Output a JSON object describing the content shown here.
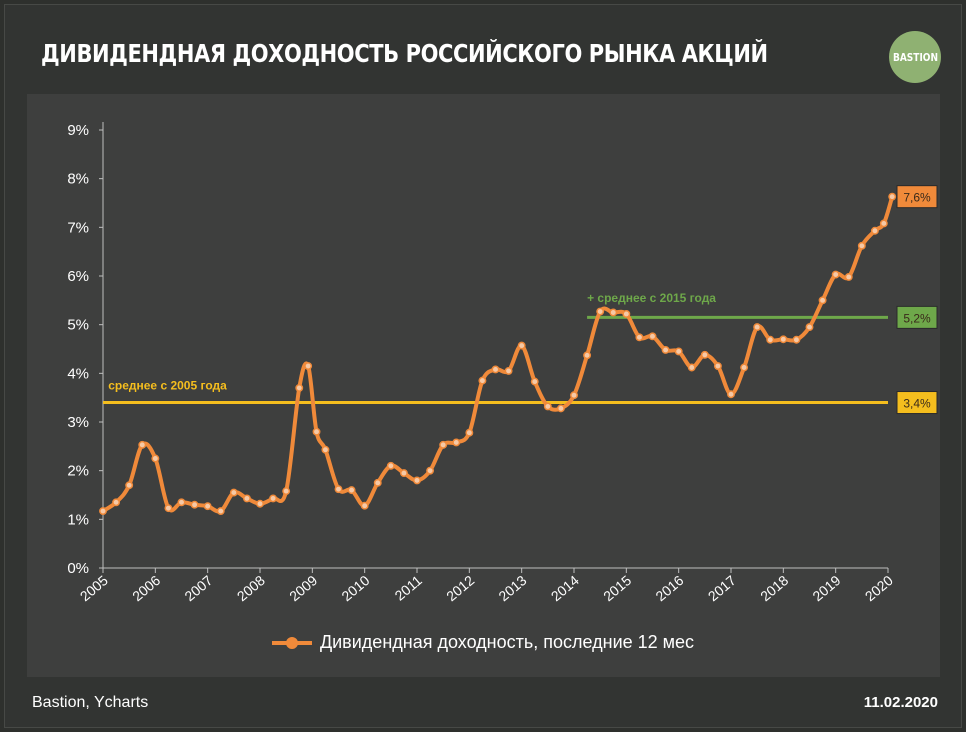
{
  "header": {
    "title": "ДИВИДЕНДНАЯ ДОХОДНОСТЬ РОССИЙСКОГО РЫНКА АКЦИЙ",
    "logo_text": "BASTION"
  },
  "footer": {
    "source": "Bastion, Ycharts",
    "date": "11.02.2020"
  },
  "colors": {
    "series": "#f08a3a",
    "avg2005": "#f5be1e",
    "avg2015": "#6ea84a",
    "background": "#3e3f3e"
  },
  "chart_data": {
    "type": "line",
    "title": "ДИВИДЕНДНАЯ ДОХОДНОСТЬ РОССИЙСКОГО РЫНКА АКЦИЙ",
    "xlabel": "",
    "ylabel": "",
    "xlim": [
      2005,
      2020
    ],
    "ylim": [
      0,
      9
    ],
    "x_ticks": [
      "2005",
      "2006",
      "2007",
      "2008",
      "2009",
      "2010",
      "2011",
      "2012",
      "2013",
      "2014",
      "2015",
      "2016",
      "2017",
      "2018",
      "2019",
      "2020"
    ],
    "y_ticks": [
      "0%",
      "1%",
      "2%",
      "3%",
      "4%",
      "5%",
      "6%",
      "7%",
      "8%",
      "9%"
    ],
    "grid": false,
    "legend": "bottom",
    "series": [
      {
        "name": "Дивидендная доходность, последние 12 мес",
        "x": [
          2005.0,
          2005.25,
          2005.5,
          2005.75,
          2006.0,
          2006.25,
          2006.5,
          2006.75,
          2007.0,
          2007.25,
          2007.5,
          2007.75,
          2008.0,
          2008.25,
          2008.5,
          2008.75,
          2008.92,
          2009.08,
          2009.25,
          2009.5,
          2009.75,
          2010.0,
          2010.25,
          2010.5,
          2010.75,
          2011.0,
          2011.25,
          2011.5,
          2011.75,
          2012.0,
          2012.25,
          2012.5,
          2012.75,
          2013.0,
          2013.25,
          2013.5,
          2013.75,
          2014.0,
          2014.25,
          2014.5,
          2014.75,
          2015.0,
          2015.25,
          2015.5,
          2015.75,
          2016.0,
          2016.25,
          2016.5,
          2016.75,
          2017.0,
          2017.25,
          2017.5,
          2017.75,
          2018.0,
          2018.25,
          2018.5,
          2018.75,
          2019.0,
          2019.25,
          2019.5,
          2019.75,
          2019.92,
          2020.08
        ],
        "values": [
          1.17,
          1.35,
          1.7,
          2.53,
          2.25,
          1.23,
          1.35,
          1.3,
          1.27,
          1.17,
          1.55,
          1.43,
          1.32,
          1.43,
          1.58,
          3.7,
          4.15,
          2.8,
          2.43,
          1.62,
          1.6,
          1.28,
          1.75,
          2.1,
          1.95,
          1.8,
          2.0,
          2.53,
          2.58,
          2.78,
          3.85,
          4.08,
          4.05,
          4.57,
          3.83,
          3.32,
          3.28,
          3.55,
          4.37,
          5.27,
          5.25,
          5.22,
          4.74,
          4.76,
          4.48,
          4.45,
          4.12,
          4.38,
          4.15,
          3.57,
          4.12,
          4.95,
          4.69,
          4.7,
          4.69,
          4.95,
          5.5,
          6.03,
          5.98,
          6.62,
          6.93,
          7.08,
          7.63
        ]
      },
      {
        "name": "среднее с 2005 года",
        "type": "hline",
        "value": 3.4,
        "x_range": [
          2005,
          2020
        ]
      },
      {
        "name": "+ среднее с 2015 года",
        "type": "hline",
        "value": 5.15,
        "x_range": [
          2014.25,
          2020
        ]
      }
    ],
    "end_labels": [
      {
        "text": "7,6%",
        "value": 7.63,
        "color": "#f08a3a"
      },
      {
        "text": "5,2%",
        "value": 5.15,
        "color": "#6ea84a"
      },
      {
        "text": "3,4%",
        "value": 3.4,
        "color": "#f5be1e"
      }
    ],
    "annotations": [
      {
        "text": "среднее с 2005  года",
        "x": 2005.1,
        "y": 3.75,
        "color": "#f5be1e"
      },
      {
        "text": "+ среднее с 2015  года",
        "x": 2014.25,
        "y": 5.55,
        "color": "#6ea84a"
      }
    ]
  }
}
